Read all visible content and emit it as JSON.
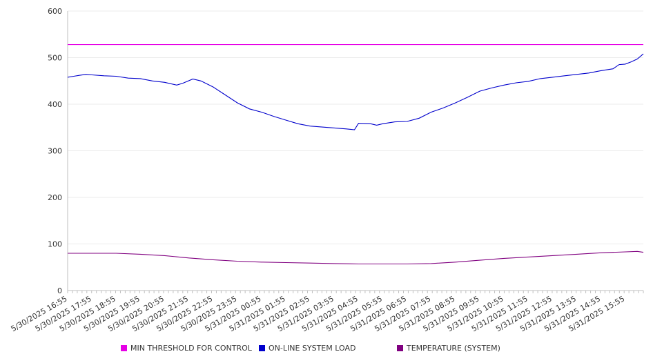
{
  "chart_data": {
    "type": "line",
    "title": "",
    "xlabel": "",
    "ylabel": "",
    "ylim": [
      0,
      600
    ],
    "yticks": [
      0,
      100,
      200,
      300,
      400,
      500,
      600
    ],
    "grid": true,
    "legend_position": "bottom",
    "x_ticks": [
      "5/30/2025 16:55",
      "5/30/2025 17:55",
      "5/30/2025 18:55",
      "5/30/2025 19:55",
      "5/30/2025 20:55",
      "5/30/2025 21:55",
      "5/30/2025 22:55",
      "5/30/2025 23:55",
      "5/31/2025 00:55",
      "5/31/2025 01:55",
      "5/31/2025 02:55",
      "5/31/2025 03:55",
      "5/31/2025 04:55",
      "5/31/2025 05:55",
      "5/31/2025 06:55",
      "5/31/2025 07:55",
      "5/31/2025 08:55",
      "5/31/2025 09:55",
      "5/31/2025 10:55",
      "5/31/2025 11:55",
      "5/31/2025 12:55",
      "5/31/2025 13:55",
      "5/31/2025 14:55",
      "5/31/2025 15:55"
    ],
    "x_start": "5/30/2025 16:55",
    "x_end": "5/31/2025 16:40",
    "series": [
      {
        "name": "MIN THRESHOLD FOR CONTROL",
        "color": "#e600e6",
        "points": [
          [
            "5/30/2025 16:55",
            528
          ],
          [
            "5/31/2025 16:40",
            528
          ]
        ]
      },
      {
        "name": "ON-LINE SYSTEM LOAD",
        "color": "#0000cc",
        "points": [
          [
            "5/30/2025 16:55",
            458
          ],
          [
            "5/30/2025 17:10",
            460
          ],
          [
            "5/30/2025 17:25",
            462
          ],
          [
            "5/30/2025 17:40",
            464
          ],
          [
            "5/30/2025 17:55",
            463
          ],
          [
            "5/30/2025 18:25",
            461
          ],
          [
            "5/30/2025 18:55",
            460
          ],
          [
            "5/30/2025 19:25",
            456
          ],
          [
            "5/30/2025 19:55",
            455
          ],
          [
            "5/30/2025 20:25",
            450
          ],
          [
            "5/30/2025 20:55",
            447
          ],
          [
            "5/30/2025 21:25",
            441
          ],
          [
            "5/30/2025 21:40",
            445
          ],
          [
            "5/30/2025 22:05",
            454
          ],
          [
            "5/30/2025 22:25",
            450
          ],
          [
            "5/30/2025 22:55",
            437
          ],
          [
            "5/30/2025 23:25",
            420
          ],
          [
            "5/30/2025 23:55",
            403
          ],
          [
            "5/31/2025 00:25",
            390
          ],
          [
            "5/31/2025 00:55",
            383
          ],
          [
            "5/31/2025 01:25",
            374
          ],
          [
            "5/31/2025 01:55",
            366
          ],
          [
            "5/31/2025 02:25",
            358
          ],
          [
            "5/31/2025 02:55",
            353
          ],
          [
            "5/31/2025 03:25",
            351
          ],
          [
            "5/31/2025 03:55",
            349
          ],
          [
            "5/31/2025 04:25",
            347
          ],
          [
            "5/31/2025 04:45",
            345
          ],
          [
            "5/31/2025 04:55",
            359
          ],
          [
            "5/31/2025 05:25",
            358
          ],
          [
            "5/31/2025 05:40",
            355
          ],
          [
            "5/31/2025 05:55",
            358
          ],
          [
            "5/31/2025 06:25",
            362
          ],
          [
            "5/31/2025 06:55",
            363
          ],
          [
            "5/31/2025 07:25",
            370
          ],
          [
            "5/31/2025 07:55",
            383
          ],
          [
            "5/31/2025 08:25",
            392
          ],
          [
            "5/31/2025 08:55",
            403
          ],
          [
            "5/31/2025 09:25",
            415
          ],
          [
            "5/31/2025 09:55",
            428
          ],
          [
            "5/31/2025 10:25",
            435
          ],
          [
            "5/31/2025 10:55",
            441
          ],
          [
            "5/31/2025 11:25",
            446
          ],
          [
            "5/31/2025 11:55",
            449
          ],
          [
            "5/31/2025 12:25",
            455
          ],
          [
            "5/31/2025 12:55",
            458
          ],
          [
            "5/31/2025 13:25",
            461
          ],
          [
            "5/31/2025 13:55",
            464
          ],
          [
            "5/31/2025 14:25",
            467
          ],
          [
            "5/31/2025 14:55",
            472
          ],
          [
            "5/31/2025 15:25",
            476
          ],
          [
            "5/31/2025 15:40",
            485
          ],
          [
            "5/31/2025 15:55",
            486
          ],
          [
            "5/31/2025 16:10",
            491
          ],
          [
            "5/31/2025 16:25",
            497
          ],
          [
            "5/31/2025 16:40",
            508
          ]
        ]
      },
      {
        "name": "TEMPERATURE (SYSTEM)",
        "color": "#800080",
        "points": [
          [
            "5/30/2025 16:55",
            80
          ],
          [
            "5/30/2025 18:55",
            80
          ],
          [
            "5/30/2025 19:55",
            78
          ],
          [
            "5/30/2025 20:55",
            75
          ],
          [
            "5/30/2025 21:55",
            70
          ],
          [
            "5/30/2025 22:55",
            66
          ],
          [
            "5/30/2025 23:55",
            63
          ],
          [
            "5/31/2025 00:55",
            61
          ],
          [
            "5/31/2025 01:55",
            60
          ],
          [
            "5/31/2025 02:55",
            59
          ],
          [
            "5/31/2025 03:55",
            58
          ],
          [
            "5/31/2025 04:55",
            57
          ],
          [
            "5/31/2025 05:55",
            57
          ],
          [
            "5/31/2025 06:55",
            57
          ],
          [
            "5/31/2025 07:55",
            58
          ],
          [
            "5/31/2025 08:55",
            61
          ],
          [
            "5/31/2025 09:55",
            65
          ],
          [
            "5/31/2025 10:55",
            69
          ],
          [
            "5/31/2025 11:55",
            72
          ],
          [
            "5/31/2025 12:55",
            75
          ],
          [
            "5/31/2025 13:55",
            78
          ],
          [
            "5/31/2025 14:55",
            81
          ],
          [
            "5/31/2025 15:55",
            83
          ],
          [
            "5/31/2025 16:25",
            84
          ],
          [
            "5/31/2025 16:40",
            82
          ]
        ]
      }
    ]
  }
}
